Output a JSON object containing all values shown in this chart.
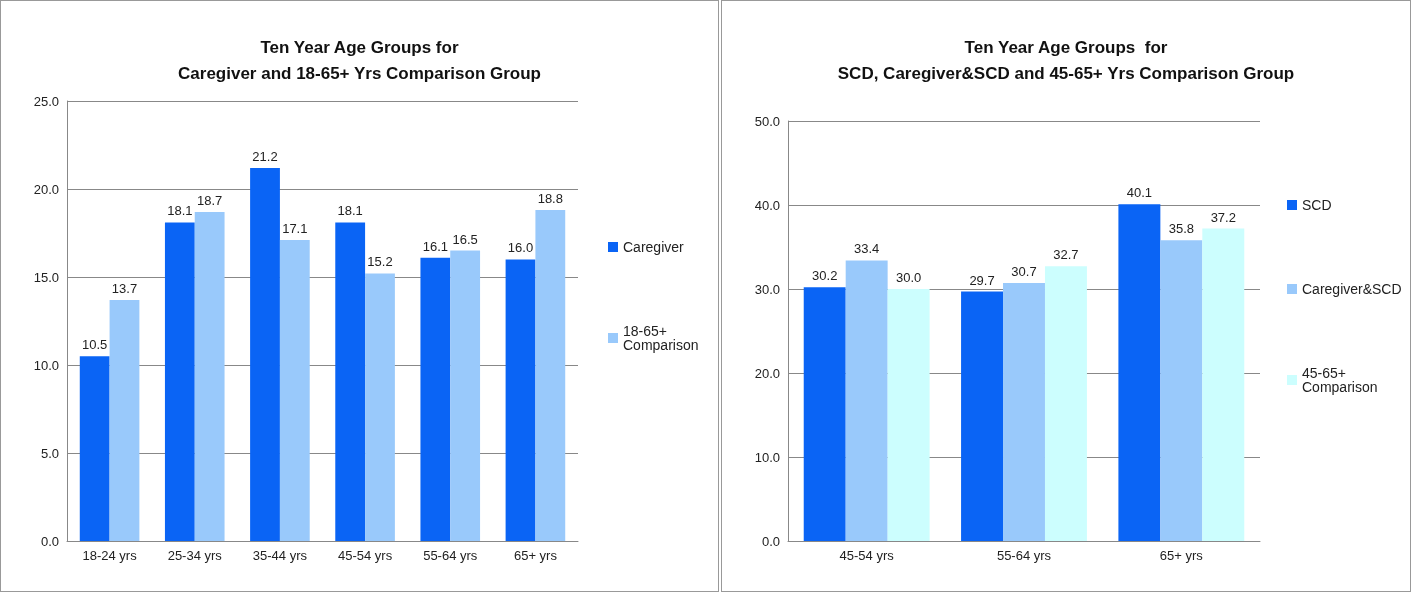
{
  "chart_data": [
    {
      "type": "bar",
      "title": "Ten Year Age Groups for\nCaregiver and 18-65+ Yrs Comparison Group",
      "categories": [
        "18-24 yrs",
        "25-34 yrs",
        "35-44 yrs",
        "45-54 yrs",
        "55-64 yrs",
        "65+ yrs"
      ],
      "series": [
        {
          "name": "Caregiver",
          "color": "#0a64f5",
          "values": [
            10.5,
            18.1,
            21.2,
            18.1,
            16.1,
            16.0
          ],
          "value_labels": [
            "10.5",
            "18.1",
            "21.2",
            "18.1",
            "16.1",
            "16.0"
          ]
        },
        {
          "name": "18-65+ Comparison",
          "color": "#99c9fb",
          "values": [
            13.7,
            18.7,
            17.1,
            15.2,
            16.5,
            18.8
          ],
          "value_labels": [
            "13.7",
            "18.7",
            "17.1",
            "15.2",
            "16.5",
            "18.8"
          ]
        }
      ],
      "ylim": [
        0,
        25
      ],
      "yticks": [
        {
          "value": 0,
          "label": "0.0"
        },
        {
          "value": 5,
          "label": "5.0"
        },
        {
          "value": 10,
          "label": "10.0"
        },
        {
          "value": 15,
          "label": "15.0"
        },
        {
          "value": 20,
          "label": "20.0"
        },
        {
          "value": 25,
          "label": "25.0"
        }
      ],
      "grid": "y",
      "legend": "right"
    },
    {
      "type": "bar",
      "title": "Ten Year Age Groups  for\nSCD, Caregiver&SCD and 45-65+ Yrs Comparison Group",
      "categories": [
        "45-54 yrs",
        "55-64 yrs",
        "65+ yrs"
      ],
      "series": [
        {
          "name": "SCD",
          "color": "#0a64f5",
          "values": [
            30.2,
            29.7,
            40.1
          ],
          "value_labels": [
            "30.2",
            "29.7",
            "40.1"
          ]
        },
        {
          "name": "Caregiver&SCD",
          "color": "#99c9fb",
          "values": [
            33.4,
            30.7,
            35.8
          ],
          "value_labels": [
            "33.4",
            "30.7",
            "35.8"
          ]
        },
        {
          "name": "45-65+ Comparison",
          "color": "#ccfefe",
          "values": [
            30.0,
            32.7,
            37.2
          ],
          "value_labels": [
            "30.0",
            "32.7",
            "37.2"
          ]
        }
      ],
      "ylim": [
        0,
        50
      ],
      "yticks": [
        {
          "value": 0,
          "label": "0.0"
        },
        {
          "value": 10,
          "label": "10.0"
        },
        {
          "value": 20,
          "label": "20.0"
        },
        {
          "value": 30,
          "label": "30.0"
        },
        {
          "value": 40,
          "label": "40.0"
        },
        {
          "value": 50,
          "label": "50.0"
        }
      ],
      "grid": "y",
      "legend": "right"
    }
  ]
}
